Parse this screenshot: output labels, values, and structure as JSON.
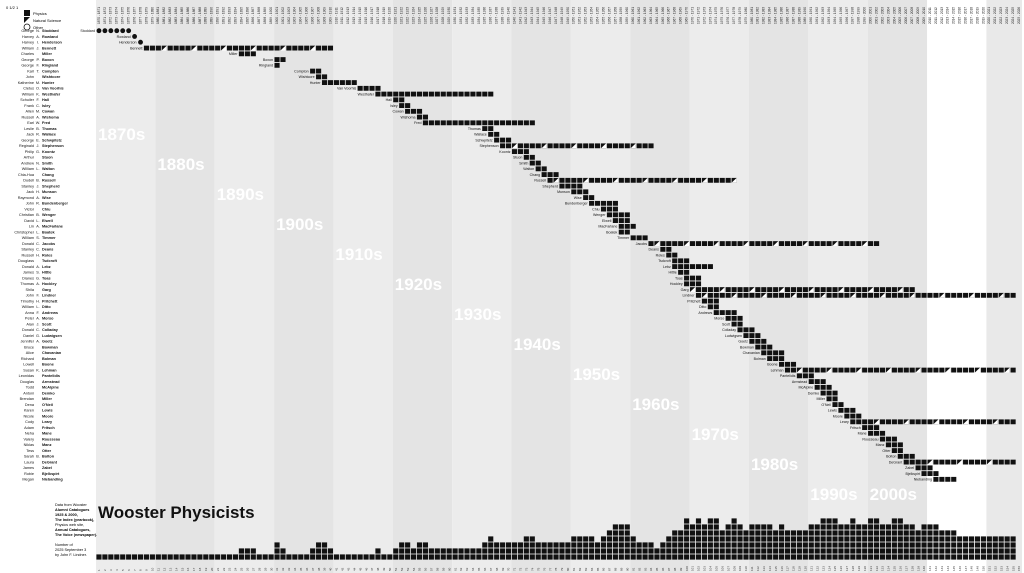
{
  "chart_data": {
    "type": "heatmap",
    "title": "Wooster Physicists",
    "legend": {
      "scale": "0 1/2 1",
      "items": [
        {
          "label": "Physics"
        },
        {
          "label": "Natural Science"
        },
        {
          "label": "Other"
        }
      ]
    },
    "source_lines": [
      "Data from Wooster",
      "Alumni Catalogues",
      "1925 & 2000,",
      "The Index (yearbook),",
      "Physics web site,",
      "Annual Catalogues,",
      "The Voice (newspaper)."
    ],
    "number_lines": [
      "Number of",
      "2025 September 3"
    ],
    "credit": "by John F. Lindner.",
    "decades": [
      "1870s",
      "1880s",
      "1890s",
      "1900s",
      "1910s",
      "1920s",
      "1930s",
      "1940s",
      "1950s",
      "1960s",
      "1970s",
      "1980s",
      "1990s",
      "2000s"
    ],
    "year_ticks_start": 1870,
    "year_ticks_end": 2025,
    "people": [
      {
        "first": "George",
        "mi": "N.",
        "last": "Stoddard",
        "start": 1870,
        "end": 1876,
        "mark": "circle"
      },
      {
        "first": "Harvey",
        "mi": "A.",
        "last": "Rowland",
        "start": 1876,
        "end": 1877,
        "mark": "circle"
      },
      {
        "first": "Harvey",
        "mi": "I.",
        "last": "Henderson",
        "start": 1877,
        "end": 1878,
        "mark": "circle"
      },
      {
        "first": "William",
        "mi": "J.",
        "last": "Bennett",
        "start": 1878,
        "end": 1910,
        "mark": "mixed"
      },
      {
        "first": "Charles",
        "mi": "",
        "last": "Miller",
        "start": 1894,
        "end": 1897,
        "mark": "mixed"
      },
      {
        "first": "George",
        "mi": "P.",
        "last": "Boxon",
        "start": 1900,
        "end": 1902,
        "mark": "square"
      },
      {
        "first": "George",
        "mi": "F.",
        "last": "Ringland",
        "start": 1900,
        "end": 1901,
        "mark": "square"
      },
      {
        "first": "Karl",
        "mi": "T.",
        "last": "Compton",
        "start": 1906,
        "end": 1908,
        "mark": "square"
      },
      {
        "first": "John",
        "mi": "",
        "last": "Wishtcore",
        "start": 1907,
        "end": 1909,
        "mark": "square"
      },
      {
        "first": "Katherine",
        "mi": "M.",
        "last": "Hunter",
        "start": 1908,
        "end": 1914,
        "mark": "square"
      },
      {
        "first": "Cletus",
        "mi": "O.",
        "last": "Van Voorhis",
        "start": 1914,
        "end": 1918,
        "mark": "square"
      },
      {
        "first": "William",
        "mi": "K.",
        "last": "Westhafer",
        "start": 1917,
        "end": 1937,
        "mark": "square"
      },
      {
        "first": "Schuiler",
        "mi": "F.",
        "last": "Hall",
        "start": 1920,
        "end": 1922,
        "mark": "square"
      },
      {
        "first": "Frank",
        "mi": "C.",
        "last": "Isley",
        "start": 1921,
        "end": 1923,
        "mark": "square"
      },
      {
        "first": "Allen",
        "mi": "M.",
        "last": "Cowan",
        "start": 1922,
        "end": 1925,
        "mark": "square"
      },
      {
        "first": "Russell",
        "mi": "A.",
        "last": "Wishoma",
        "start": 1924,
        "end": 1926,
        "mark": "square"
      },
      {
        "first": "Earl",
        "mi": "W.",
        "last": "Fred",
        "start": 1925,
        "end": 1944,
        "mark": "square"
      },
      {
        "first": "Leslie",
        "mi": "B.",
        "last": "Thomas",
        "start": 1935,
        "end": 1937,
        "mark": "square"
      },
      {
        "first": "Jack",
        "mi": "R.",
        "last": "Wallace",
        "start": 1936,
        "end": 1938,
        "mark": "square"
      },
      {
        "first": "George",
        "mi": "E.",
        "last": "Schwpitetz",
        "start": 1937,
        "end": 1940,
        "mark": "square"
      },
      {
        "first": "Reginald",
        "mi": "J.",
        "last": "Stephenson",
        "start": 1938,
        "end": 1964,
        "mark": "mixed"
      },
      {
        "first": "Philip",
        "mi": "G.",
        "last": "Koontz",
        "start": 1940,
        "end": 1943,
        "mark": "square"
      },
      {
        "first": "Arthur",
        "mi": "",
        "last": "Stuon",
        "start": 1942,
        "end": 1944,
        "mark": "square"
      },
      {
        "first": "Andrew",
        "mi": "N.",
        "last": "Smith",
        "start": 1943,
        "end": 1945,
        "mark": "square"
      },
      {
        "first": "William",
        "mi": "L.",
        "last": "Walton",
        "start": 1944,
        "end": 1946,
        "mark": "square"
      },
      {
        "first": "Chia-Hua",
        "mi": "",
        "last": "Chang",
        "start": 1945,
        "end": 1948,
        "mark": "square"
      },
      {
        "first": "Dudell",
        "mi": "B.",
        "last": "Russell",
        "start": 1946,
        "end": 1978,
        "mark": "mixed"
      },
      {
        "first": "Stanley",
        "mi": "J.",
        "last": "Shepherd",
        "start": 1948,
        "end": 1952,
        "mark": "square"
      },
      {
        "first": "Jack",
        "mi": "H.",
        "last": "Munson",
        "start": 1950,
        "end": 1953,
        "mark": "square"
      },
      {
        "first": "Raymond",
        "mi": "A.",
        "last": "Wise",
        "start": 1952,
        "end": 1954,
        "mark": "square"
      },
      {
        "first": "John",
        "mi": "R.",
        "last": "Bundenberger",
        "start": 1953,
        "end": 1958,
        "mark": "square"
      },
      {
        "first": "Victor",
        "mi": "",
        "last": "Chiu",
        "start": 1955,
        "end": 1958,
        "mark": "square"
      },
      {
        "first": "Christian",
        "mi": "B.",
        "last": "Wenger",
        "start": 1956,
        "end": 1960,
        "mark": "square"
      },
      {
        "first": "David",
        "mi": "L.",
        "last": "Elwell",
        "start": 1957,
        "end": 1960,
        "mark": "square"
      },
      {
        "first": "Lin",
        "mi": "A.",
        "last": "MacFarlane",
        "start": 1958,
        "end": 1961,
        "mark": "square"
      },
      {
        "first": "Christopher",
        "mi": "L.",
        "last": "Boatek",
        "start": 1958,
        "end": 1960,
        "mark": "square"
      },
      {
        "first": "William",
        "mi": "S.",
        "last": "Timmer",
        "start": 1960,
        "end": 1963,
        "mark": "square"
      },
      {
        "first": "Donald",
        "mi": "C.",
        "last": "Jacobs",
        "start": 1963,
        "end": 2002,
        "mark": "mixed"
      },
      {
        "first": "Stanley",
        "mi": "C.",
        "last": "Deans",
        "start": 1965,
        "end": 1967,
        "mark": "square"
      },
      {
        "first": "Russell",
        "mi": "H.",
        "last": "Roles",
        "start": 1966,
        "end": 1968,
        "mark": "square"
      },
      {
        "first": "Douglass",
        "mi": "",
        "last": "Tsdcroft",
        "start": 1967,
        "end": 1970,
        "mark": "square"
      },
      {
        "first": "Donald",
        "mi": "A.",
        "last": "Lebz",
        "start": 1967,
        "end": 1974,
        "mark": "square"
      },
      {
        "first": "James",
        "mi": "S.",
        "last": "Hittle",
        "start": 1968,
        "end": 1970,
        "mark": "square"
      },
      {
        "first": "Dianes",
        "mi": "G.",
        "last": "Toas",
        "start": 1969,
        "end": 1972,
        "mark": "square"
      },
      {
        "first": "Thomas",
        "mi": "A.",
        "last": "Hockley",
        "start": 1969,
        "end": 1972,
        "mark": "square"
      },
      {
        "first": "Shila",
        "mi": "",
        "last": "Garg",
        "start": 1970,
        "end": 2008,
        "mark": "mixed"
      },
      {
        "first": "John",
        "mi": "F.",
        "last": "Lindner",
        "start": 1971,
        "end": 2025,
        "mark": "mixed"
      },
      {
        "first": "Timothy",
        "mi": "H.",
        "last": "Pritchett",
        "start": 1972,
        "end": 1975,
        "mark": "square"
      },
      {
        "first": "William",
        "mi": "L.",
        "last": "Ditto",
        "start": 1973,
        "end": 1975,
        "mark": "square"
      },
      {
        "first": "Anna",
        "mi": "F.",
        "last": "Andrews",
        "start": 1974,
        "end": 1978,
        "mark": "square"
      },
      {
        "first": "Peter",
        "mi": "A.",
        "last": "Morso",
        "start": 1976,
        "end": 1979,
        "mark": "square"
      },
      {
        "first": "Alan",
        "mi": "J.",
        "last": "Scott",
        "start": 1977,
        "end": 1979,
        "mark": "square"
      },
      {
        "first": "Donald",
        "mi": "C.",
        "last": "Colladay",
        "start": 1978,
        "end": 1981,
        "mark": "square"
      },
      {
        "first": "Daniel",
        "mi": "G.",
        "last": "Ludwigsen",
        "start": 1979,
        "end": 1982,
        "mark": "square"
      },
      {
        "first": "Jennifer",
        "mi": "A.",
        "last": "Goetz",
        "start": 1980,
        "end": 1983,
        "mark": "square"
      },
      {
        "first": "Bruce",
        "mi": "",
        "last": "Bowman",
        "start": 1981,
        "end": 1984,
        "mark": "square"
      },
      {
        "first": "Alice",
        "mi": "",
        "last": "Chavanian",
        "start": 1982,
        "end": 1986,
        "mark": "square"
      },
      {
        "first": "Richard",
        "mi": "",
        "last": "Bolman",
        "start": 1983,
        "end": 1986,
        "mark": "square"
      },
      {
        "first": "Lowell",
        "mi": "",
        "last": "Boone",
        "start": 1985,
        "end": 1988,
        "mark": "square"
      },
      {
        "first": "Susan",
        "mi": "K.",
        "last": "Lehman",
        "start": 1986,
        "end": 2025,
        "mark": "mixed"
      },
      {
        "first": "Leonidas",
        "mi": "",
        "last": "Pantelidis",
        "start": 1988,
        "end": 1991,
        "mark": "square"
      },
      {
        "first": "Douglas",
        "mi": "",
        "last": "Armstead",
        "start": 1990,
        "end": 1993,
        "mark": "square"
      },
      {
        "first": "Todd",
        "mi": "",
        "last": "McAlpine",
        "start": 1991,
        "end": 1994,
        "mark": "square"
      },
      {
        "first": "Antoni",
        "mi": "",
        "last": "Demko",
        "start": 1992,
        "end": 1995,
        "mark": "square"
      },
      {
        "first": "Brendan",
        "mi": "",
        "last": "Miller",
        "start": 1993,
        "end": 1995,
        "mark": "square"
      },
      {
        "first": "Dena",
        "mi": "",
        "last": "O'Neil",
        "start": 1994,
        "end": 1996,
        "mark": "square"
      },
      {
        "first": "Karen",
        "mi": "",
        "last": "Lewis",
        "start": 1995,
        "end": 1998,
        "mark": "square"
      },
      {
        "first": "Nicole",
        "mi": "",
        "last": "Moore",
        "start": 1996,
        "end": 1999,
        "mark": "square"
      },
      {
        "first": "Cody",
        "mi": "",
        "last": "Leary",
        "start": 1997,
        "end": 2025,
        "mark": "mixed"
      },
      {
        "first": "Adam",
        "mi": "",
        "last": "Fritsch",
        "start": 1999,
        "end": 2002,
        "mark": "square"
      },
      {
        "first": "Neha",
        "mi": "",
        "last": "Mane",
        "start": 2000,
        "end": 2003,
        "mark": "square"
      },
      {
        "first": "Valery",
        "mi": "",
        "last": "Rousseau",
        "start": 2002,
        "end": 2005,
        "mark": "square"
      },
      {
        "first": "Niklas",
        "mi": "",
        "last": "Manz",
        "start": 2003,
        "end": 2006,
        "mark": "square"
      },
      {
        "first": "Tess",
        "mi": "",
        "last": "Otter",
        "start": 2004,
        "end": 2006,
        "mark": "square"
      },
      {
        "first": "Sarah",
        "mi": "B.",
        "last": "Bolton",
        "start": 2005,
        "end": 2008,
        "mark": "square"
      },
      {
        "first": "Laura",
        "mi": "",
        "last": "DeGrant",
        "start": 2006,
        "end": 2025,
        "mark": "mixed"
      },
      {
        "first": "James",
        "mi": "",
        "last": "Zabel",
        "start": 2008,
        "end": 2011,
        "mark": "square"
      },
      {
        "first": "Robie",
        "mi": "",
        "last": "Bjelkspirt",
        "start": 2009,
        "end": 2012,
        "mark": "square"
      },
      {
        "first": "Megan",
        "mi": "",
        "last": "Niebanding",
        "start": 2011,
        "end": 2015,
        "mark": "square"
      }
    ]
  }
}
